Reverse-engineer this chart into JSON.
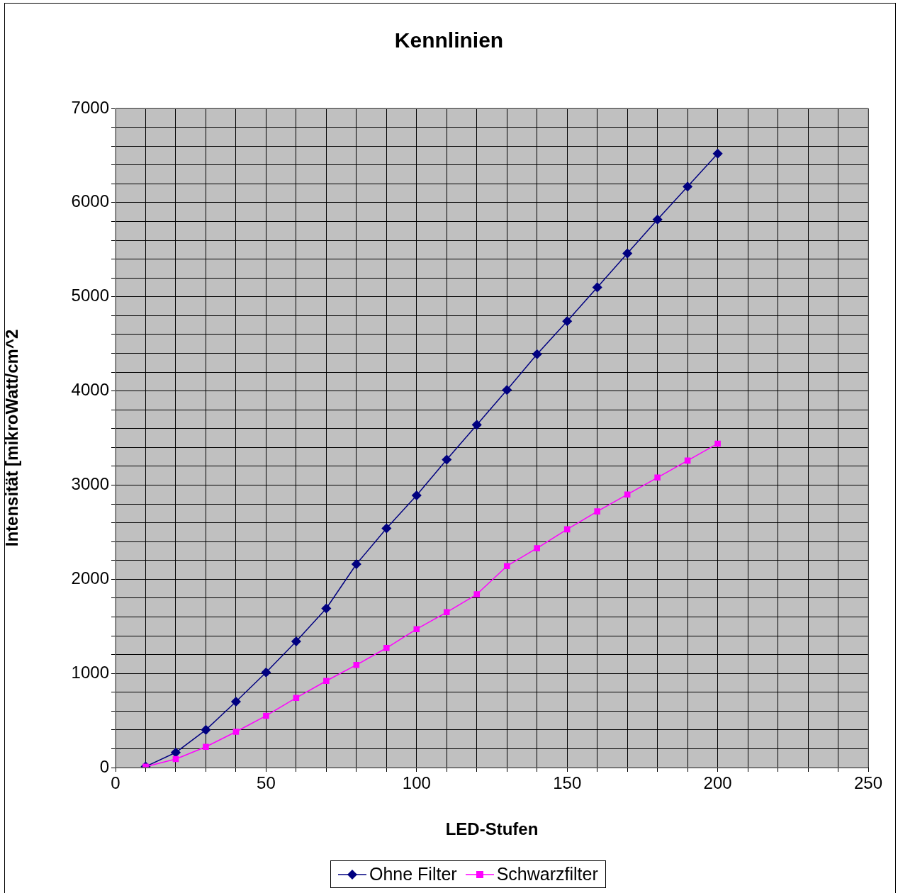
{
  "chart_data": {
    "type": "line",
    "title": "Kennlinien",
    "xlabel": "LED-Stufen",
    "ylabel": "Intensität [mikroWatt/cm^2",
    "x": [
      10,
      20,
      30,
      40,
      50,
      60,
      70,
      80,
      90,
      100,
      110,
      120,
      130,
      140,
      150,
      160,
      170,
      180,
      190,
      200
    ],
    "series": [
      {
        "name": "Ohne Filter",
        "color": "#000080",
        "marker": "diamond",
        "values": [
          10,
          160,
          400,
          700,
          1010,
          1340,
          1690,
          2160,
          2540,
          2890,
          3270,
          3640,
          4010,
          4390,
          4740,
          5100,
          5460,
          5820,
          6170,
          6520
        ]
      },
      {
        "name": "Schwarzfilter",
        "color": "#ff00ff",
        "marker": "square",
        "values": [
          10,
          90,
          220,
          380,
          550,
          740,
          920,
          1090,
          1270,
          1470,
          1650,
          1840,
          2140,
          2330,
          2530,
          2720,
          2900,
          3080,
          3260,
          3440
        ]
      }
    ],
    "xlim": [
      0,
      250
    ],
    "xticks": [
      0,
      {
        "value": 10,
        "label": null
      },
      {
        "value": 20,
        "label": null
      },
      {
        "value": 30,
        "label": null
      },
      {
        "value": 40,
        "label": null
      },
      50,
      {
        "value": 60,
        "label": null
      },
      {
        "value": 70,
        "label": null
      },
      {
        "value": 80,
        "label": null
      },
      {
        "value": 90,
        "label": null
      },
      100,
      {
        "value": 110,
        "label": null
      },
      {
        "value": 120,
        "label": null
      },
      {
        "value": 130,
        "label": null
      },
      {
        "value": 140,
        "label": null
      },
      150,
      {
        "value": 160,
        "label": null
      },
      {
        "value": 170,
        "label": null
      },
      {
        "value": 180,
        "label": null
      },
      {
        "value": 190,
        "label": null
      },
      200,
      {
        "value": 210,
        "label": null
      },
      {
        "value": 220,
        "label": null
      },
      {
        "value": 230,
        "label": null
      },
      {
        "value": 240,
        "label": null
      },
      250
    ],
    "ylim": [
      0,
      7000
    ],
    "yticks": [
      0,
      {
        "value": 200,
        "label": null
      },
      {
        "value": 400,
        "label": null
      },
      {
        "value": 600,
        "label": null
      },
      {
        "value": 800,
        "label": null
      },
      1000,
      {
        "value": 1200,
        "label": null
      },
      {
        "value": 1400,
        "label": null
      },
      {
        "value": 1600,
        "label": null
      },
      {
        "value": 1800,
        "label": null
      },
      2000,
      {
        "value": 2200,
        "label": null
      },
      {
        "value": 2400,
        "label": null
      },
      {
        "value": 2600,
        "label": null
      },
      {
        "value": 2800,
        "label": null
      },
      3000,
      {
        "value": 3200,
        "label": null
      },
      {
        "value": 3400,
        "label": null
      },
      {
        "value": 3600,
        "label": null
      },
      {
        "value": 3800,
        "label": null
      },
      4000,
      {
        "value": 4200,
        "label": null
      },
      {
        "value": 4400,
        "label": null
      },
      {
        "value": 4600,
        "label": null
      },
      {
        "value": 4800,
        "label": null
      },
      5000,
      {
        "value": 5200,
        "label": null
      },
      {
        "value": 5400,
        "label": null
      },
      {
        "value": 5600,
        "label": null
      },
      {
        "value": 5800,
        "label": null
      },
      6000,
      {
        "value": 6200,
        "label": null
      },
      {
        "value": 6400,
        "label": null
      },
      {
        "value": 6600,
        "label": null
      },
      {
        "value": 6800,
        "label": null
      },
      7000
    ],
    "grid": true,
    "legend": "bottom",
    "line_style": "solid"
  }
}
